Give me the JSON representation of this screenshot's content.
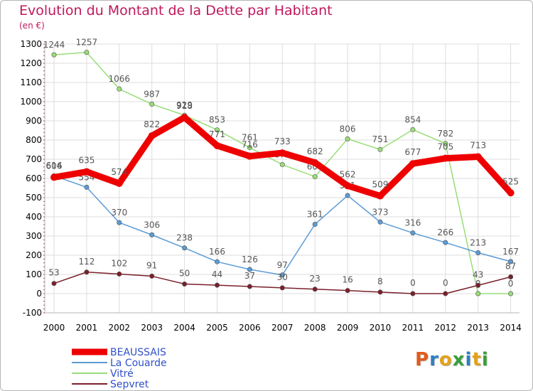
{
  "title": "Evolution du Montant de la Dette par Habitant",
  "subtitle": "(en €)",
  "logo": {
    "text": "Proxiti",
    "colors": [
      "#e25a1c",
      "#2f7fc1",
      "#e2a31c",
      "#3a9e3a",
      "#2f7fc1",
      "#e2a31c",
      "#3a9e3a"
    ]
  },
  "chart_data": {
    "type": "line",
    "x": [
      "2000",
      "2001",
      "2002",
      "2003",
      "2004",
      "2005",
      "2006",
      "2007",
      "2008",
      "2009",
      "2010",
      "2011",
      "2012",
      "2013",
      "2014"
    ],
    "ylim": [
      -100,
      1300
    ],
    "yticks": [
      -100,
      0,
      100,
      200,
      300,
      400,
      500,
      600,
      700,
      800,
      900,
      1000,
      1100,
      1200,
      1300
    ],
    "grid": true,
    "legend": "bottom-left",
    "series": [
      {
        "name": "Vitré",
        "color": "#99dd77",
        "values": [
          1244,
          1257,
          1066,
          987,
          929,
          853,
          761,
          672,
          609,
          806,
          751,
          854,
          782,
          0,
          0
        ]
      },
      {
        "name": "La Couarde",
        "color": "#5b9bd5",
        "values": [
          614,
          554,
          370,
          306,
          238,
          166,
          126,
          97,
          361,
          511,
          373,
          316,
          266,
          213,
          167
        ]
      },
      {
        "name": "Sepvret",
        "color": "#7a1f2b",
        "values": [
          53,
          112,
          102,
          91,
          50,
          44,
          37,
          30,
          23,
          16,
          8,
          0,
          0,
          43,
          87
        ]
      },
      {
        "name": "BEAUSSAIS",
        "color": "#ee0000",
        "values": [
          606,
          635,
          574,
          822,
          918,
          771,
          716,
          733,
          682,
          562,
          509,
          677,
          705,
          713,
          525
        ]
      }
    ],
    "legend_order": [
      "BEAUSSAIS",
      "La Couarde",
      "Vitré",
      "Sepvret"
    ]
  }
}
